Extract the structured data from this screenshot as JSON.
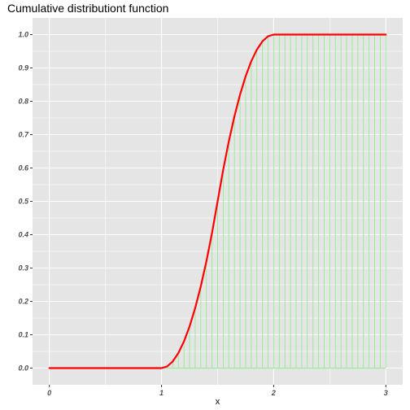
{
  "chart_data": {
    "type": "line",
    "title": "Cumulative distributiont function",
    "xlabel": "x",
    "ylabel": "",
    "xlim": [
      -0.15,
      3.15
    ],
    "ylim": [
      -0.05,
      1.05
    ],
    "x_ticks": [
      0,
      1,
      2,
      3
    ],
    "y_ticks": [
      0.0,
      0.1,
      0.2,
      0.3,
      0.4,
      0.5,
      0.6,
      0.7,
      0.8,
      0.9,
      1.0
    ],
    "x_tick_labels": [
      "0",
      "1",
      "2",
      "3"
    ],
    "y_tick_labels": [
      "0.0",
      "0.1",
      "0.2",
      "0.3",
      "0.4",
      "0.5",
      "0.6",
      "0.7",
      "0.8",
      "0.9",
      "1.0"
    ],
    "grid": true,
    "colors": {
      "panel": "#e5e5e5",
      "grid": "#ffffff",
      "line": "#ff0000",
      "segments": "#90ee90"
    },
    "series": [
      {
        "style": "line",
        "x": [
          0.0,
          0.5,
          1.0,
          1.05,
          1.1,
          1.15,
          1.2,
          1.25,
          1.3,
          1.35,
          1.4,
          1.45,
          1.5,
          1.55,
          1.6,
          1.65,
          1.7,
          1.75,
          1.8,
          1.85,
          1.9,
          1.95,
          2.0,
          2.5,
          3.0
        ],
        "y": [
          0.0,
          0.0,
          0.0,
          0.005,
          0.02,
          0.045,
          0.08,
          0.125,
          0.18,
          0.245,
          0.32,
          0.405,
          0.5,
          0.595,
          0.68,
          0.755,
          0.82,
          0.875,
          0.92,
          0.955,
          0.98,
          0.995,
          1.0,
          1.0,
          1.0
        ]
      }
    ],
    "segments": {
      "x": [
        1.05,
        1.1,
        1.15,
        1.2,
        1.25,
        1.3,
        1.35,
        1.4,
        1.45,
        1.5,
        1.55,
        1.6,
        1.65,
        1.7,
        1.75,
        1.8,
        1.85,
        1.9,
        1.95,
        2.0,
        2.05,
        2.1,
        2.15,
        2.2,
        2.25,
        2.3,
        2.35,
        2.4,
        2.45,
        2.5,
        2.55,
        2.6,
        2.65,
        2.7,
        2.75,
        2.8,
        2.85,
        2.9,
        2.95,
        3.0
      ],
      "y": [
        0.005,
        0.02,
        0.045,
        0.08,
        0.125,
        0.18,
        0.245,
        0.32,
        0.405,
        0.5,
        0.595,
        0.68,
        0.755,
        0.82,
        0.875,
        0.92,
        0.955,
        0.98,
        0.995,
        1.0,
        1.0,
        1.0,
        1.0,
        1.0,
        1.0,
        1.0,
        1.0,
        1.0,
        1.0,
        1.0,
        1.0,
        1.0,
        1.0,
        1.0,
        1.0,
        1.0,
        1.0,
        1.0,
        1.0,
        1.0
      ]
    }
  }
}
